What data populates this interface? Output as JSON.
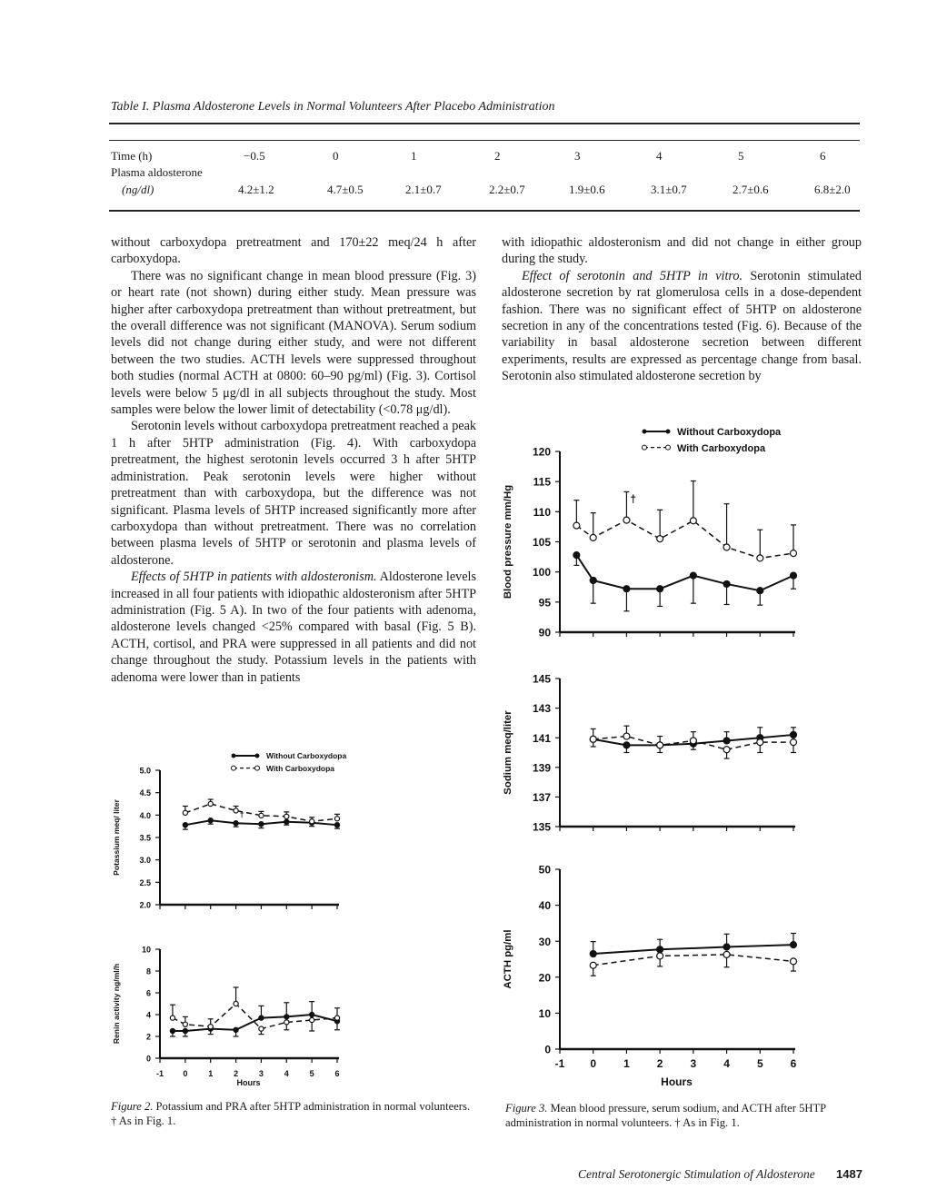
{
  "table": {
    "title": "Table I. Plasma Aldosterone Levels in Normal Volunteers After Placebo Administration",
    "row_time_label": "Time (h)",
    "row_aldo_label": "Plasma aldosterone",
    "row_aldo_unit": "(ng/dl)",
    "times": [
      "−0.5",
      "0",
      "1",
      "2",
      "3",
      "4",
      "5",
      "6"
    ],
    "values": [
      "4.2±1.2",
      "4.7±0.5",
      "2.1±0.7",
      "2.2±0.7",
      "1.9±0.6",
      "3.1±0.7",
      "2.7±0.6",
      "6.8±2.0"
    ]
  },
  "left_column": {
    "p1": "without carboxydopa pretreatment and 170±22 meq/24 h after carboxydopa.",
    "p2": "There was no significant change in mean blood pressure (Fig. 3) or heart rate (not shown) during either study. Mean pressure was higher after carboxydopa pretreatment than without pretreatment, but the overall difference was not significant (MANOVA). Serum sodium levels did not change during either study, and were not different between the two studies. ACTH levels were suppressed throughout both studies (normal ACTH at 0800: 60–90 pg/ml) (Fig. 3). Cortisol levels were below 5 μg/dl in all subjects throughout the study. Most samples were below the lower limit of detectability (<0.78 μg/dl).",
    "p3": "Serotonin levels without carboxydopa pretreatment reached a peak 1 h after 5HTP administration (Fig. 4). With carboxydopa pretreatment, the highest serotonin levels occurred 3 h after 5HTP administration. Peak serotonin levels were higher without pretreatment than with carboxydopa, but the difference was not significant. Plasma levels of 5HTP increased significantly more after carboxydopa than without pretreatment. There was no correlation between plasma levels of 5HTP or serotonin and plasma levels of aldosterone.",
    "p4_heading": "Effects of 5HTP in patients with aldosteronism.",
    "p4": " Aldosterone levels increased in all four patients with idiopathic aldosteronism after 5HTP administration (Fig. 5 A). In two of the four patients with adenoma, aldosterone levels changed <25% compared with basal (Fig. 5 B). ACTH, cortisol, and PRA were suppressed in all patients and did not change throughout the study. Potassium levels in the patients with adenoma were lower than in patients"
  },
  "right_column": {
    "p1": "with idiopathic aldosteronism and did not change in either group during the study.",
    "p2_heading": "Effect of serotonin and 5HTP in vitro.",
    "p2": " Serotonin stimulated aldosterone secretion by rat glomerulosa cells in a dose-dependent fashion. There was no significant effect of 5HTP on aldosterone secretion in any of the concentrations tested (Fig. 6). Because of the variability in basal aldosterone secretion between different experiments, results are expressed as percentage change from basal. Serotonin also stimulated aldosterone secretion by"
  },
  "legend": {
    "without": "Without Carboxydopa",
    "with": "With Carboxydopa"
  },
  "figure2_caption": {
    "label": "Figure 2.",
    "text": " Potassium and PRA after 5HTP administration in normal volunteers. † As in Fig. 1."
  },
  "figure3_caption": {
    "label": "Figure 3.",
    "text": " Mean blood pressure, serum sodium, and ACTH after 5HTP administration in normal volunteers. † As in Fig. 1."
  },
  "footer": {
    "running_title": "Central Serotonergic Stimulation of Aldosterone",
    "page_number": "1487"
  },
  "chart_data": [
    {
      "type": "line",
      "title": "Potassium",
      "ylabel": "Potassium meq/ liter",
      "xlabel": "",
      "xlim": [
        -1,
        6
      ],
      "ylim": [
        2,
        5
      ],
      "grid": false,
      "yticks": [
        "2.0",
        "2.5",
        "3.0",
        "3.5",
        "4.0",
        "4.5",
        "5.0"
      ],
      "xticks": [],
      "series": [
        {
          "name": "Without Carboxydopa",
          "style": "solid",
          "x": [
            0,
            1,
            2,
            3,
            4,
            5,
            6
          ],
          "y": [
            3.78,
            3.88,
            3.82,
            3.8,
            3.85,
            3.83,
            3.78
          ],
          "err_lo": [
            3.68,
            3.8,
            3.74,
            3.71,
            3.78,
            3.75,
            3.7
          ],
          "err_hi": [
            null,
            null,
            null,
            null,
            null,
            null,
            null
          ]
        },
        {
          "name": "With Carboxydopa",
          "style": "dashed",
          "x": [
            0,
            1,
            2,
            3,
            4,
            5,
            6
          ],
          "y": [
            4.05,
            4.25,
            4.1,
            3.99,
            3.97,
            3.86,
            3.92
          ],
          "err_lo": [
            null,
            null,
            null,
            null,
            null,
            null,
            null
          ],
          "err_hi": [
            4.2,
            4.35,
            4.2,
            4.08,
            4.07,
            3.95,
            4.02
          ],
          "annotations": [
            {
              "x": 2,
              "text": "†"
            }
          ]
        }
      ]
    },
    {
      "type": "line",
      "title": "Renin activity",
      "ylabel": "Renin activity ng/ml/h",
      "xlabel": "Hours",
      "xlim": [
        -1,
        6
      ],
      "ylim": [
        0,
        10
      ],
      "grid": false,
      "yticks": [
        "0",
        "2",
        "4",
        "6",
        "8",
        "10"
      ],
      "xticks": [
        "-1",
        "0",
        "1",
        "2",
        "3",
        "4",
        "5",
        "6"
      ],
      "series": [
        {
          "name": "Without Carboxydopa",
          "style": "solid",
          "x": [
            -0.5,
            0,
            1,
            2,
            3,
            4,
            5,
            6
          ],
          "y": [
            2.5,
            2.5,
            2.7,
            2.6,
            3.7,
            3.8,
            4.0,
            3.4
          ],
          "err_lo": [
            2.0,
            2.0,
            2.2,
            2.0,
            null,
            null,
            2.5,
            2.6
          ],
          "err_hi": [
            null,
            null,
            null,
            null,
            4.8,
            5.1,
            5.2,
            4.6
          ]
        },
        {
          "name": "With Carboxydopa",
          "style": "dashed",
          "x": [
            -0.5,
            0,
            1,
            2,
            3,
            4,
            5,
            6
          ],
          "y": [
            3.7,
            3.1,
            2.9,
            5.0,
            2.7,
            3.3,
            3.5,
            3.7
          ],
          "err_lo": [
            null,
            null,
            null,
            null,
            2.2,
            2.6,
            null,
            null
          ],
          "err_hi": [
            4.9,
            3.8,
            3.6,
            6.5,
            null,
            null,
            null,
            null
          ]
        }
      ]
    },
    {
      "type": "line",
      "title": "Blood pressure",
      "ylabel": "Blood pressure mm/Hg",
      "xlabel": "",
      "xlim": [
        -1,
        6
      ],
      "ylim": [
        90,
        120
      ],
      "grid": false,
      "yticks": [
        "90",
        "95",
        "100",
        "105",
        "110",
        "115",
        "120"
      ],
      "xticks": [],
      "series": [
        {
          "name": "Without Carboxydopa",
          "style": "solid",
          "x": [
            -0.5,
            0,
            1,
            2,
            3,
            4,
            5,
            6
          ],
          "y": [
            102.8,
            98.6,
            97.2,
            97.2,
            99.4,
            98.0,
            96.9,
            99.4
          ],
          "err_lo": [
            101.1,
            94.8,
            93.5,
            94.3,
            94.8,
            94.6,
            94.5,
            97.2
          ],
          "err_hi": [
            null,
            null,
            null,
            null,
            null,
            null,
            null,
            null
          ]
        },
        {
          "name": "With Carboxydopa",
          "style": "dashed",
          "x": [
            -0.5,
            0,
            1,
            2,
            3,
            4,
            5,
            6
          ],
          "y": [
            107.7,
            105.7,
            108.6,
            105.5,
            108.5,
            104.1,
            102.3,
            103.1
          ],
          "err_lo": [
            null,
            null,
            null,
            null,
            null,
            null,
            null,
            null
          ],
          "err_hi": [
            111.9,
            109.8,
            113.3,
            110.3,
            115.1,
            111.3,
            107.0,
            107.8
          ],
          "annotations": [
            {
              "x": 1,
              "text": "†"
            }
          ]
        }
      ]
    },
    {
      "type": "line",
      "title": "Sodium",
      "ylabel": "Sodium meq/liter",
      "xlabel": "",
      "xlim": [
        -1,
        6
      ],
      "ylim": [
        135,
        145
      ],
      "grid": false,
      "yticks": [
        "135",
        "137",
        "139",
        "141",
        "143",
        "145"
      ],
      "xticks": [],
      "series": [
        {
          "name": "Without Carboxydopa",
          "style": "solid",
          "x": [
            0,
            1,
            2,
            3,
            4,
            5,
            6
          ],
          "y": [
            140.9,
            140.5,
            140.5,
            140.6,
            140.8,
            141.0,
            141.2
          ],
          "err_lo": [
            140.4,
            140.0,
            140.0,
            140.2,
            null,
            null,
            null
          ],
          "err_hi": [
            141.6,
            null,
            141.1,
            null,
            141.4,
            141.7,
            141.7
          ]
        },
        {
          "name": "With Carboxydopa",
          "style": "dashed",
          "x": [
            0,
            1,
            2,
            3,
            4,
            5,
            6
          ],
          "y": [
            140.9,
            141.1,
            140.5,
            140.8,
            140.2,
            140.7,
            140.7
          ],
          "err_lo": [
            null,
            null,
            null,
            null,
            139.6,
            140.0,
            140.0
          ],
          "err_hi": [
            null,
            141.8,
            null,
            141.4,
            null,
            null,
            null
          ]
        }
      ]
    },
    {
      "type": "line",
      "title": "ACTH",
      "ylabel": "ACTH pg/ml",
      "xlabel": "Hours",
      "xlim": [
        -1,
        6
      ],
      "ylim": [
        0,
        50
      ],
      "grid": false,
      "yticks": [
        "0",
        "10",
        "20",
        "30",
        "40",
        "50"
      ],
      "xticks": [
        "-1",
        "0",
        "1",
        "2",
        "3",
        "4",
        "5",
        "6"
      ],
      "series": [
        {
          "name": "Without Carboxydopa",
          "style": "solid",
          "x": [
            0,
            2,
            4,
            6
          ],
          "y": [
            26.5,
            27.7,
            28.4,
            29.0
          ],
          "err_lo": [
            null,
            null,
            null,
            null
          ],
          "err_hi": [
            29.9,
            30.5,
            32.0,
            32.2
          ]
        },
        {
          "name": "With Carboxydopa",
          "style": "dashed",
          "x": [
            0,
            2,
            4,
            6
          ],
          "y": [
            23.3,
            25.9,
            26.3,
            24.4
          ],
          "err_lo": [
            20.4,
            23.0,
            22.8,
            21.7
          ],
          "err_hi": [
            null,
            null,
            null,
            null
          ]
        }
      ]
    }
  ]
}
